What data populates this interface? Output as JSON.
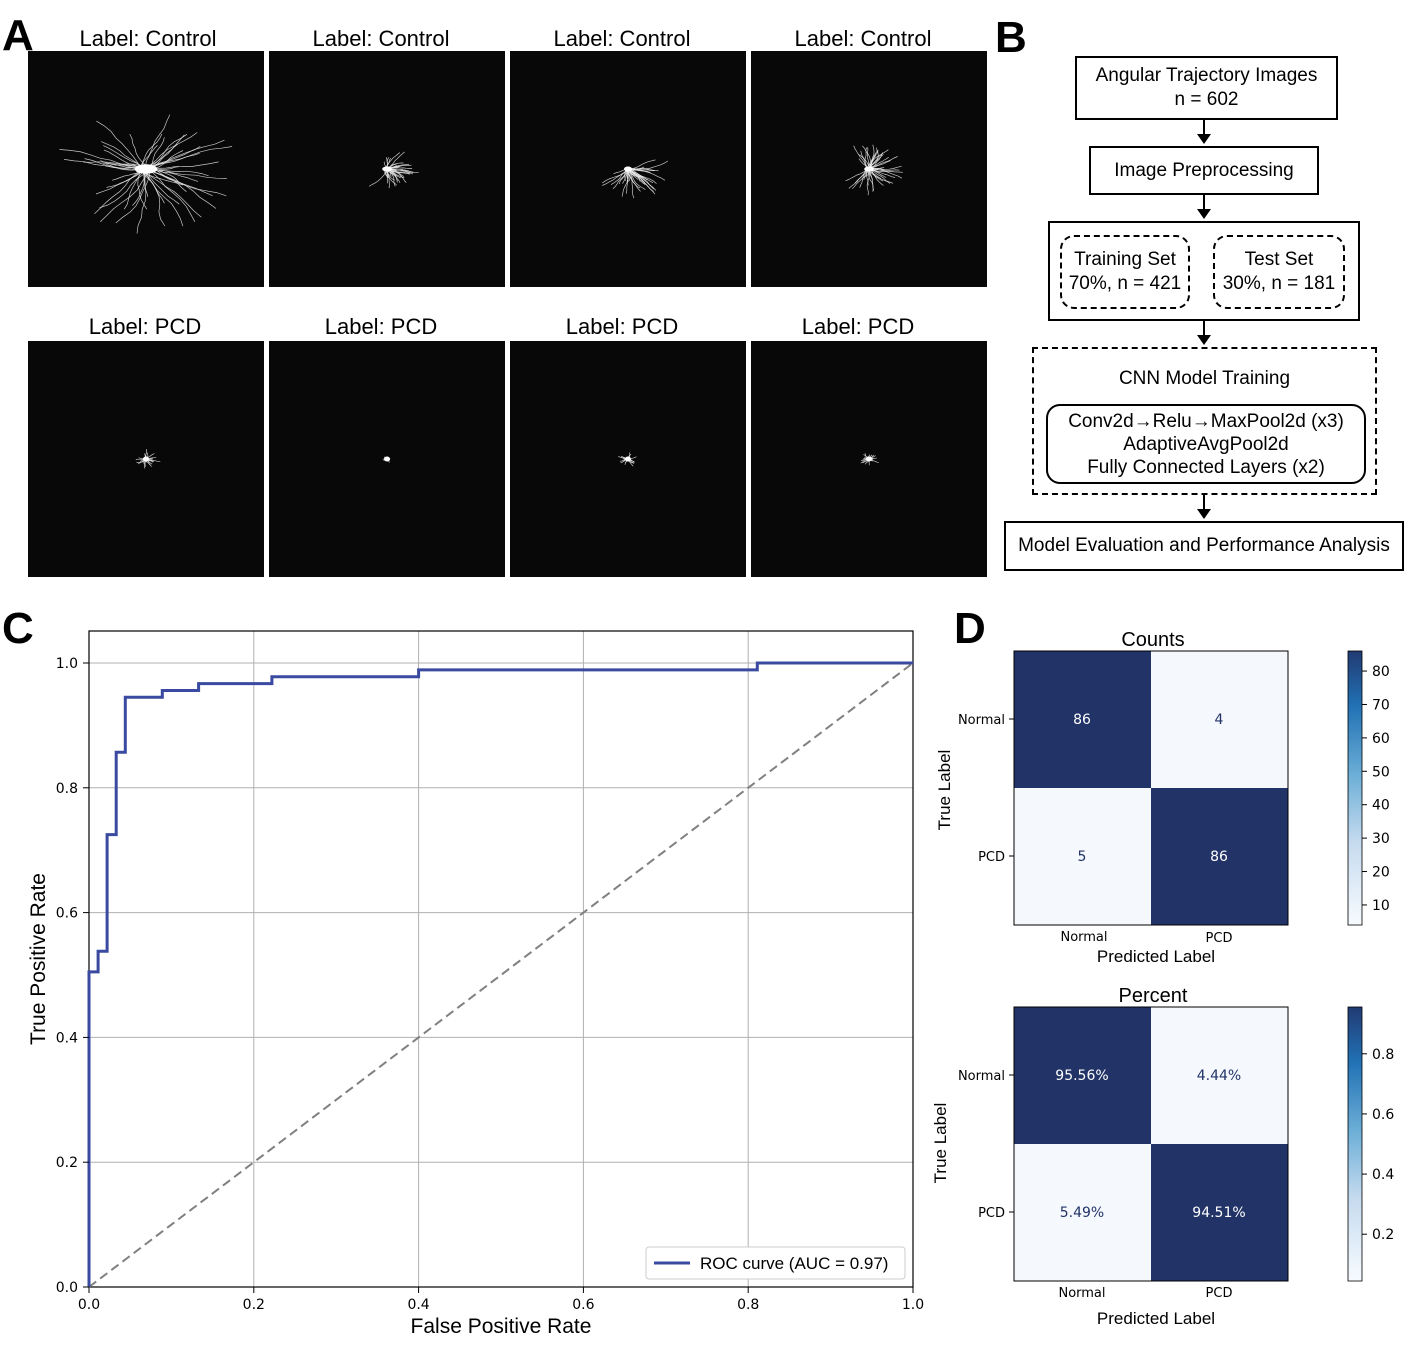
{
  "panels": {
    "a": "A",
    "b": "B",
    "c": "C",
    "d": "D"
  },
  "panel_a": {
    "titles": [
      "Label: Control",
      "Label: Control",
      "Label: Control",
      "Label: Control",
      "Label: PCD",
      "Label: PCD",
      "Label: PCD",
      "Label: PCD"
    ]
  },
  "flowchart": {
    "box1": {
      "line1": "Angular Trajectory Images",
      "line2": "n = 602"
    },
    "box2": {
      "line1": "Image Preprocessing"
    },
    "training": {
      "line1": "Training Set",
      "line2": "70%, n = 421"
    },
    "test": {
      "line1": "Test Set",
      "line2": "30%, n = 181"
    },
    "cnn": {
      "title": "CNN Model Training",
      "line1": "Conv2d→Relu→MaxPool2d (x3)",
      "line2": "AdaptiveAvgPool2d",
      "line3": "Fully Connected Layers (x2)"
    },
    "eval": {
      "line1": "Model Evaluation and Performance Analysis"
    }
  },
  "roc": {
    "legend": "ROC curve (AUC = 0.97)",
    "xticks": [
      "0.0",
      "0.2",
      "0.4",
      "0.6",
      "0.8",
      "1.0"
    ],
    "yticks": [
      "0.0",
      "0.2",
      "0.4",
      "0.6",
      "0.8",
      "1.0"
    ],
    "curve_color": "#3a4aa0"
  },
  "cm_counts": {
    "title": "Counts",
    "cells": [
      "86",
      "4",
      "5",
      "86"
    ],
    "row_labels": [
      "Normal",
      "PCD"
    ],
    "col_labels": [
      "Normal",
      "PCD"
    ],
    "xlabel": "Predicted Label",
    "ylabel": "True Label",
    "cbar_ticks": [
      "80",
      "70",
      "60",
      "50",
      "40",
      "30",
      "20",
      "10"
    ]
  },
  "cm_percent": {
    "title": "Percent",
    "cells": [
      "95.56%",
      "4.44%",
      "5.49%",
      "94.51%"
    ],
    "row_labels": [
      "Normal",
      "PCD"
    ],
    "col_labels": [
      "Normal",
      "PCD"
    ],
    "xlabel": "Predicted Label",
    "ylabel": "True Label",
    "cbar_ticks": [
      "0.8",
      "0.6",
      "0.4",
      "0.2"
    ]
  },
  "chart_data": [
    {
      "type": "line",
      "title": "",
      "xlabel": "False Positive Rate",
      "ylabel": "True Positive Rate",
      "xlim": [
        0,
        1
      ],
      "ylim": [
        0,
        1
      ],
      "grid": true,
      "legend_position": "lower-right",
      "series": [
        {
          "name": "ROC curve (AUC = 0.97)",
          "x": [
            0,
            0,
            0.011,
            0.011,
            0.022,
            0.022,
            0.033,
            0.033,
            0.044,
            0.044,
            0.089,
            0.089,
            0.133,
            0.133,
            0.222,
            0.222,
            0.4,
            0.4,
            0.811,
            0.811,
            1.0
          ],
          "y": [
            0,
            0.505,
            0.505,
            0.538,
            0.538,
            0.725,
            0.725,
            0.857,
            0.857,
            0.945,
            0.945,
            0.956,
            0.956,
            0.967,
            0.967,
            0.978,
            0.978,
            0.989,
            0.989,
            1.0,
            1.0
          ]
        },
        {
          "name": "chance",
          "x": [
            0,
            1
          ],
          "y": [
            0,
            1
          ]
        }
      ]
    },
    {
      "type": "heatmap",
      "title": "Counts",
      "rows": [
        "Normal",
        "PCD"
      ],
      "cols": [
        "Normal",
        "PCD"
      ],
      "values": [
        [
          86,
          4
        ],
        [
          5,
          86
        ]
      ],
      "xlabel": "Predicted Label",
      "ylabel": "True Label",
      "vrange": [
        4,
        86
      ]
    },
    {
      "type": "heatmap",
      "title": "Percent",
      "rows": [
        "Normal",
        "PCD"
      ],
      "cols": [
        "Normal",
        "PCD"
      ],
      "values": [
        [
          0.9556,
          0.0444
        ],
        [
          0.0549,
          0.9451
        ]
      ],
      "xlabel": "Predicted Label",
      "ylabel": "True Label",
      "vrange": [
        0.0444,
        0.9556
      ]
    }
  ]
}
